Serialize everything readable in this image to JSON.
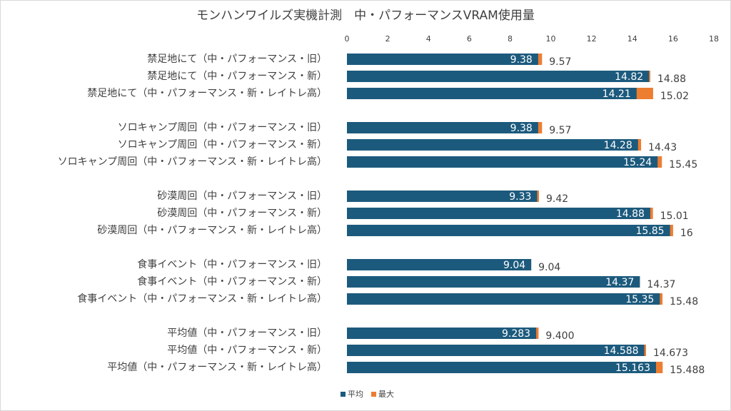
{
  "chart_data": {
    "type": "bar",
    "orientation": "horizontal",
    "overlap": true,
    "title": "モンハンワイルズ実機計測　中・パフォーマンスVRAM使用量",
    "categories": [
      "禁足地にて（中・パフォーマンス・旧）",
      "禁足地にて（中・パフォーマンス・新）",
      "禁足地にて（中・パフォーマンス・新・レイトレ高）",
      null,
      "ソロキャンプ周回（中・パフォーマンス・旧）",
      "ソロキャンプ周回（中・パフォーマンス・新）",
      "ソロキャンプ周回（中・パフォーマンス・新・レイトレ高）",
      null,
      "砂漠周回（中・パフォーマンス・旧）",
      "砂漠周回（中・パフォーマンス・新）",
      "砂漠周回（中・パフォーマンス・新・レイトレ高）",
      null,
      "食事イベント（中・パフォーマンス・旧）",
      "食事イベント（中・パフォーマンス・新）",
      "食事イベント（中・パフォーマンス・新・レイトレ高）",
      null,
      "平均値（中・パフォーマンス・旧）",
      "平均値（中・パフォーマンス・新）",
      "平均値（中・パフォーマンス・新・レイトレ高）"
    ],
    "series": [
      {
        "name": "最大",
        "color": "#ed7d31",
        "values": [
          9.57,
          14.88,
          15.02,
          null,
          9.57,
          14.43,
          15.45,
          null,
          9.42,
          15.01,
          16,
          null,
          9.04,
          14.37,
          15.48,
          null,
          9.4,
          14.673,
          15.488
        ],
        "value_labels": [
          "9.57",
          "14.88",
          "15.02",
          null,
          "9.57",
          "14.43",
          "15.45",
          null,
          "9.42",
          "15.01",
          "16",
          null,
          "9.04",
          "14.37",
          "15.48",
          null,
          "9.400",
          "14.673",
          "15.488"
        ]
      },
      {
        "name": "平均",
        "color": "#1c5a7d",
        "values": [
          9.38,
          14.82,
          14.21,
          null,
          9.38,
          14.28,
          15.24,
          null,
          9.33,
          14.88,
          15.85,
          null,
          9.04,
          14.37,
          15.35,
          null,
          9.283,
          14.588,
          15.163
        ],
        "value_labels": [
          "9.38",
          "14.82",
          "14.21",
          null,
          "9.38",
          "14.28",
          "15.24",
          null,
          "9.33",
          "14.88",
          "15.85",
          null,
          "9.04",
          "14.37",
          "15.35",
          null,
          "9.283",
          "14.588",
          "15.163"
        ]
      }
    ],
    "legend_order": [
      1,
      0
    ],
    "xlim": [
      0,
      18
    ],
    "xticks": [
      0,
      2,
      4,
      6,
      8,
      10,
      12,
      14,
      16,
      18
    ],
    "grid": false
  }
}
